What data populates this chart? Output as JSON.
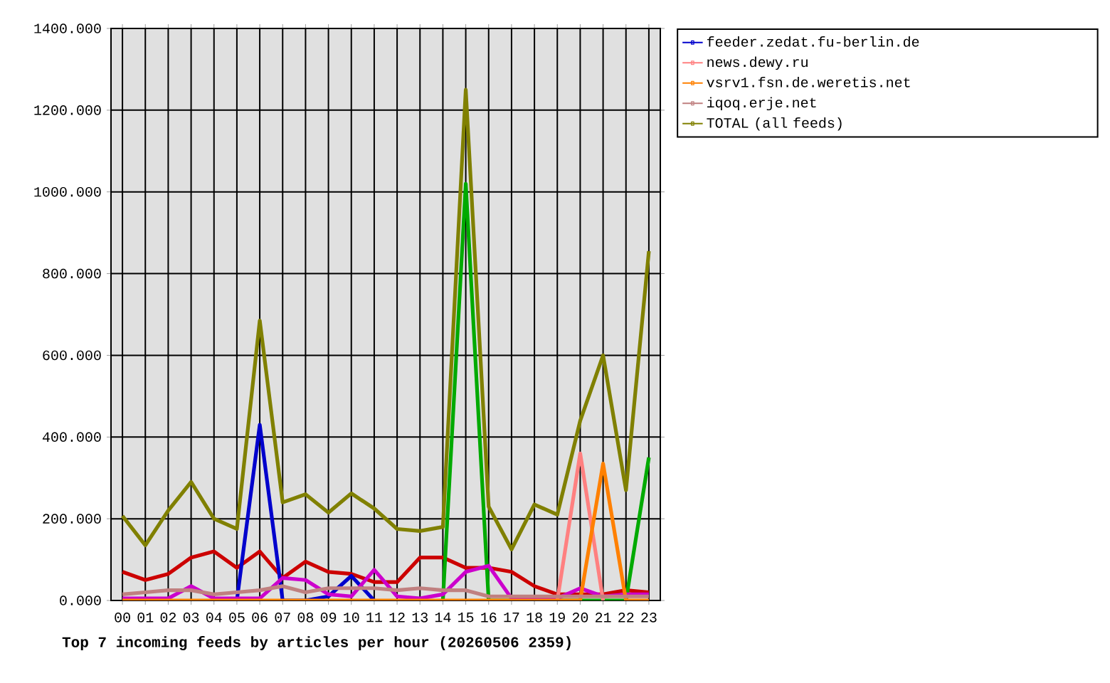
{
  "chart_data": {
    "type": "line",
    "title": "Top 7 incoming feeds by articles per hour (20260506 2359)",
    "categories": [
      "00",
      "01",
      "02",
      "03",
      "04",
      "05",
      "06",
      "07",
      "08",
      "09",
      "10",
      "11",
      "12",
      "13",
      "14",
      "15",
      "16",
      "17",
      "18",
      "19",
      "20",
      "21",
      "22",
      "23"
    ],
    "series": [
      {
        "color": "#cc0000",
        "values": [
          70,
          50,
          65,
          105,
          120,
          80,
          120,
          55,
          95,
          70,
          65,
          45,
          45,
          105,
          105,
          80,
          80,
          70,
          35,
          15,
          15,
          15,
          25,
          20
        ]
      },
      {
        "color": "#00aa00",
        "values": [
          null,
          null,
          null,
          null,
          null,
          null,
          null,
          null,
          null,
          null,
          null,
          null,
          null,
          null,
          0,
          1020,
          0,
          0,
          0,
          0,
          0,
          0,
          0,
          350
        ]
      },
      {
        "name": "feeder.zedat.fu-berlin.de",
        "color": "#0000cc",
        "values": [
          null,
          null,
          null,
          null,
          null,
          0,
          430,
          0,
          0,
          10,
          60,
          0,
          null,
          null,
          null,
          null,
          null,
          null,
          null,
          null,
          null,
          null,
          null,
          null
        ]
      },
      {
        "color": "#cc00cc",
        "values": [
          5,
          5,
          5,
          35,
          5,
          5,
          5,
          55,
          50,
          15,
          10,
          75,
          10,
          5,
          15,
          70,
          85,
          5,
          5,
          5,
          30,
          10,
          15,
          15
        ]
      },
      {
        "name": "news.dewy.ru",
        "color": "#ff8080",
        "values": [
          null,
          null,
          null,
          null,
          null,
          null,
          null,
          null,
          null,
          null,
          null,
          null,
          null,
          null,
          null,
          null,
          null,
          null,
          null,
          0,
          360,
          0,
          null,
          null
        ]
      },
      {
        "name": "vsrv1.fsn.de.weretis.net",
        "color": "#ff8000",
        "values": [
          0,
          0,
          0,
          0,
          0,
          0,
          0,
          0,
          0,
          0,
          0,
          0,
          0,
          0,
          0,
          0,
          0,
          0,
          0,
          0,
          0,
          335,
          0,
          0
        ]
      },
      {
        "name": "iqoq.erje.net",
        "color": "#c08080",
        "values": [
          15,
          20,
          25,
          25,
          15,
          20,
          25,
          35,
          20,
          30,
          30,
          30,
          25,
          30,
          25,
          25,
          10,
          10,
          10,
          10,
          10,
          10,
          10,
          10
        ]
      },
      {
        "name": "TOTAL (all feeds)",
        "color": "#808000",
        "values": [
          207,
          135,
          220,
          290,
          200,
          175,
          685,
          240,
          260,
          215,
          262,
          225,
          175,
          170,
          180,
          1250,
          230,
          125,
          235,
          210,
          440,
          600,
          270,
          855
        ]
      }
    ],
    "ylim": [
      0,
      1400
    ],
    "yticks": [
      {
        "value": 0,
        "label": "0.000"
      },
      {
        "value": 200,
        "label": "200.000"
      },
      {
        "value": 400,
        "label": "400.000"
      },
      {
        "value": 600,
        "label": "600.000"
      },
      {
        "value": 800,
        "label": "800.000"
      },
      {
        "value": 1000,
        "label": "1000.000"
      },
      {
        "value": 1200,
        "label": "1200.000"
      },
      {
        "value": 1400,
        "label": "1400.000"
      }
    ],
    "grid": true,
    "legend": "top right",
    "marker": "none",
    "line_style": "solid"
  }
}
